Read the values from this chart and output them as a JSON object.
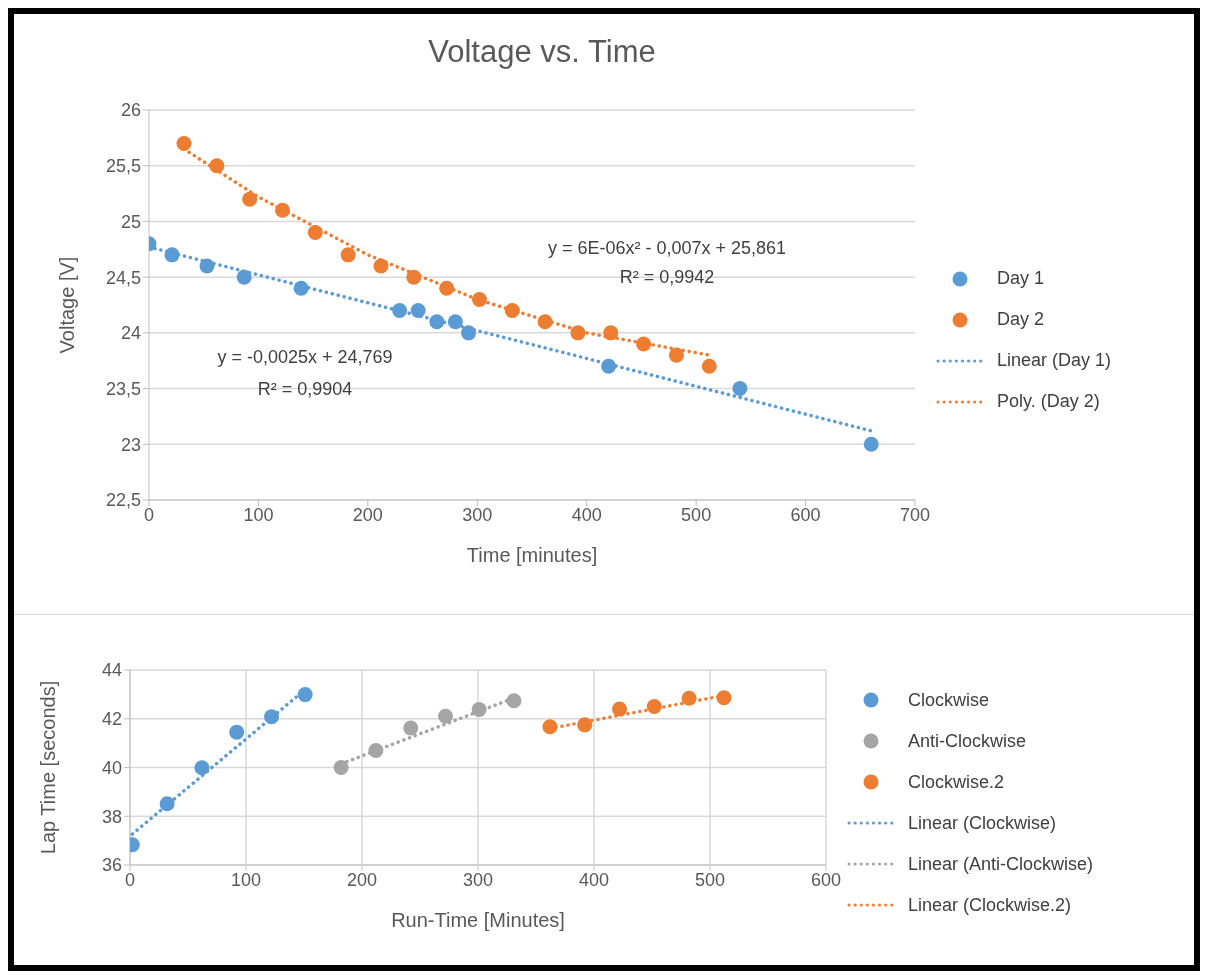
{
  "chart_data": [
    {
      "type": "scatter",
      "title": "Voltage vs. Time",
      "xlabel": "Time [minutes]",
      "ylabel": "Voltage [V]",
      "xlim": [
        0,
        700
      ],
      "xticks": [
        0,
        100,
        200,
        300,
        400,
        500,
        600,
        700
      ],
      "ylim": [
        22.5,
        26
      ],
      "yticks": [
        {
          "value": 22.5,
          "label": "22,5"
        },
        23,
        {
          "value": 23.5,
          "label": "23,5"
        },
        24,
        {
          "value": 24.5,
          "label": "24,5"
        },
        25,
        {
          "value": 25.5,
          "label": "25,5"
        },
        26
      ],
      "grid": "y",
      "legend": "right",
      "series": [
        {
          "name": "Day 1",
          "marker": "circle",
          "color": "#5b9bd5",
          "x": [
            0,
            21,
            53,
            87,
            139,
            229,
            246,
            263,
            280,
            292,
            420,
            540,
            660
          ],
          "values": [
            24.8,
            24.7,
            24.6,
            24.5,
            24.4,
            24.2,
            24.2,
            24.1,
            24.1,
            24.0,
            23.7,
            23.5,
            23.0
          ]
        },
        {
          "name": "Day 2",
          "marker": "circle",
          "color": "#ed7d31",
          "x": [
            32,
            62,
            92,
            122,
            152,
            182,
            212,
            242,
            272,
            302,
            332,
            362,
            392,
            422,
            452,
            482,
            512
          ],
          "values": [
            25.7,
            25.5,
            25.2,
            25.1,
            24.9,
            24.7,
            24.6,
            24.5,
            24.4,
            24.3,
            24.2,
            24.1,
            24.0,
            24.0,
            23.9,
            23.8,
            23.7
          ]
        },
        {
          "name": "Linear (Day 1)",
          "type": "line",
          "line_style": "dotted",
          "color": "#5b9bd5",
          "x": [
            0,
            660
          ],
          "values": [
            24.77,
            23.12
          ]
        },
        {
          "name": "Poly. (Day 2)",
          "type": "line",
          "line_style": "dotted",
          "color": "#ed7d31",
          "x": [
            32,
            100,
            200,
            300,
            400,
            512
          ],
          "values": [
            25.65,
            25.22,
            24.7,
            24.3,
            24.0,
            23.8
          ]
        }
      ],
      "annotations": [
        "y = -0,0025x + 24,769",
        "R² = 0,9904",
        "y = 6E-06x² - 0,007x + 25,861",
        "R² = 0,9942"
      ]
    },
    {
      "type": "scatter",
      "xlabel": "Run-Time [Minutes]",
      "ylabel": "Lap Time [seconds]",
      "xlim": [
        0,
        600
      ],
      "xticks": [
        0,
        100,
        200,
        300,
        400,
        500,
        600
      ],
      "ylim": [
        36,
        44
      ],
      "yticks": [
        36,
        38,
        40,
        42,
        44
      ],
      "grid": true,
      "legend": "right",
      "series": [
        {
          "name": "Clockwise",
          "marker": "circle",
          "color": "#5b9bd5",
          "x": [
            2,
            32,
            62,
            92,
            122,
            151
          ],
          "values": [
            36.83,
            38.51,
            39.99,
            41.45,
            42.08,
            42.99
          ]
        },
        {
          "name": "Anti-Clockwise",
          "marker": "circle",
          "color": "#a5a5a5",
          "x": [
            182,
            212,
            242,
            272,
            301,
            331
          ],
          "values": [
            40.0,
            40.7,
            41.62,
            42.1,
            42.38,
            42.74
          ]
        },
        {
          "name": "Clockwise.2",
          "marker": "circle",
          "color": "#ed7d31",
          "x": [
            362,
            392,
            422,
            452,
            482,
            512
          ],
          "values": [
            41.67,
            41.75,
            42.4,
            42.5,
            42.84,
            42.86
          ]
        },
        {
          "name": "Linear (Clockwise)",
          "type": "line",
          "line_style": "dotted",
          "color": "#5b9bd5",
          "x": [
            2,
            151
          ],
          "values": [
            37.27,
            43.2
          ]
        },
        {
          "name": "Linear (Anti-Clockwise)",
          "type": "line",
          "line_style": "dotted",
          "color": "#a5a5a5",
          "x": [
            182,
            331
          ],
          "values": [
            40.15,
            42.85
          ]
        },
        {
          "name": "Linear (Clockwise.2)",
          "type": "line",
          "line_style": "dotted",
          "color": "#ed7d31",
          "x": [
            362,
            512
          ],
          "values": [
            41.6,
            42.95
          ]
        }
      ]
    }
  ]
}
